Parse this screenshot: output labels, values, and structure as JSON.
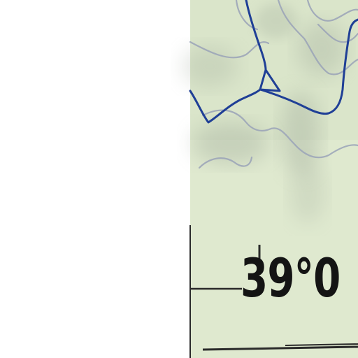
{
  "map": {
    "latitude_label": "39°0",
    "colors": {
      "terrain": "#dfe9cf",
      "terrain_shadow": "#9aa595",
      "contour": "#9aa3b8",
      "road": "#1f3f96",
      "frame": "#2a2a2a",
      "background": "#ffffff"
    },
    "icons": [
      "road-junction-icon",
      "graticule-tick-icon"
    ]
  }
}
